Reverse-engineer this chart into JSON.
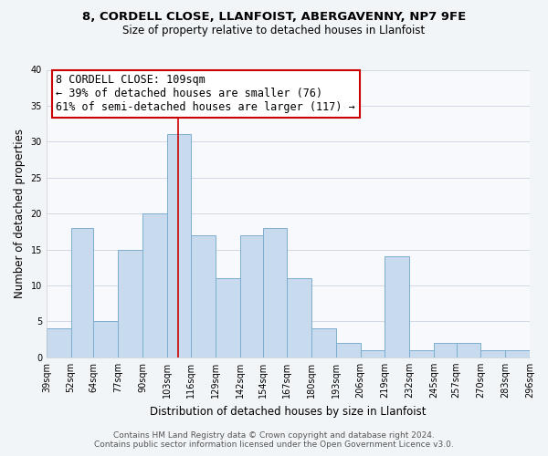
{
  "title_line1": "8, CORDELL CLOSE, LLANFOIST, ABERGAVENNY, NP7 9FE",
  "title_line2": "Size of property relative to detached houses in Llanfoist",
  "xlabel": "Distribution of detached houses by size in Llanfoist",
  "ylabel": "Number of detached properties",
  "bin_labels": [
    "39sqm",
    "52sqm",
    "64sqm",
    "77sqm",
    "90sqm",
    "103sqm",
    "116sqm",
    "129sqm",
    "142sqm",
    "154sqm",
    "167sqm",
    "180sqm",
    "193sqm",
    "206sqm",
    "219sqm",
    "232sqm",
    "245sqm",
    "257sqm",
    "270sqm",
    "283sqm",
    "296sqm"
  ],
  "bin_edges": [
    39,
    52,
    64,
    77,
    90,
    103,
    116,
    129,
    142,
    154,
    167,
    180,
    193,
    206,
    219,
    232,
    245,
    257,
    270,
    283,
    296
  ],
  "values": [
    4,
    18,
    5,
    15,
    20,
    31,
    17,
    11,
    17,
    18,
    11,
    4,
    2,
    1,
    14,
    1,
    2,
    2,
    1,
    1
  ],
  "bar_color": "#c8daed",
  "bar_edge_color": "#7daecf",
  "vline_x": 109,
  "vline_color": "#cc0000",
  "annotation_line1": "8 CORDELL CLOSE: 109sqm",
  "annotation_line2": "← 39% of detached houses are smaller (76)",
  "annotation_line3": "61% of semi-detached houses are larger (117) →",
  "ylim": [
    0,
    40
  ],
  "yticks": [
    0,
    5,
    10,
    15,
    20,
    25,
    30,
    35,
    40
  ],
  "footer_line1": "Contains HM Land Registry data © Crown copyright and database right 2024.",
  "footer_line2": "Contains public sector information licensed under the Open Government Licence v3.0.",
  "bg_color": "#f2f5f8",
  "plot_bg_color": "#f7f9fc",
  "title_fontsize": 9.5,
  "subtitle_fontsize": 8.5,
  "axis_label_fontsize": 8.5,
  "tick_fontsize": 7,
  "annotation_fontsize": 8.5,
  "footer_fontsize": 6.5,
  "grid_color": "#d0d8e4"
}
